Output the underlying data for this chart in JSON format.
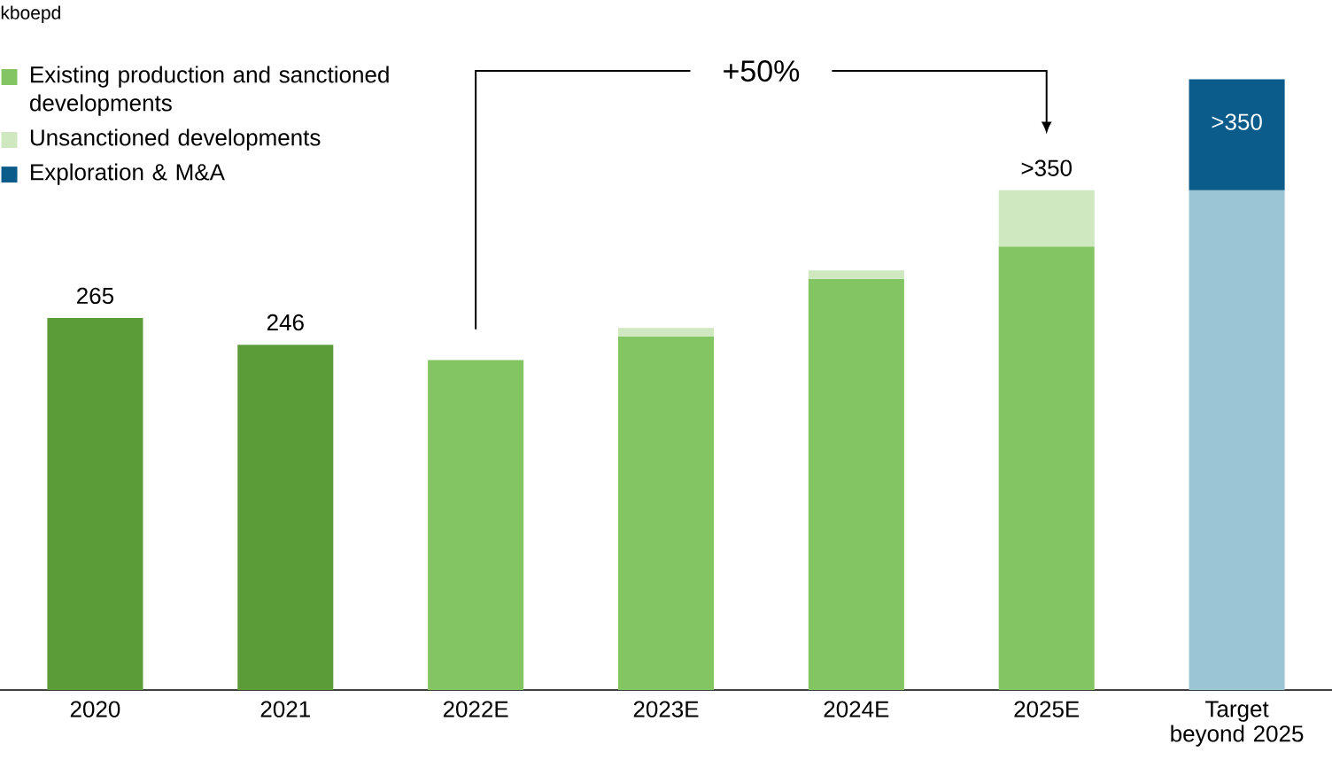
{
  "chart_data": {
    "type": "bar",
    "stacked": true,
    "ylabel": "kboepd",
    "categories": [
      "2020",
      "2021",
      "2022E",
      "2023E",
      "2024E",
      "2025E",
      "Target beyond 2025"
    ],
    "tick_labels": "x",
    "legend": "top left",
    "annotations": [
      "+50%"
    ],
    "series": [
      {
        "name": "Existing production and sanctioned developments",
        "color": "#84c563",
        "colors": [
          "#5b9c38",
          "#5b9c38",
          "#84c563",
          "#84c563",
          "#84c563",
          "#84c563",
          "#9bc4d4"
        ],
        "values": [
          265,
          246,
          235,
          252,
          293,
          316,
          356
        ],
        "value_labels": [
          "265",
          "246",
          null,
          null,
          null,
          null,
          null
        ]
      },
      {
        "name": "Unsanctioned developments",
        "color": "#cfe8c0",
        "values": [
          null,
          null,
          null,
          6,
          6,
          40,
          null
        ],
        "value_labels": [
          null,
          null,
          null,
          null,
          null,
          ">350",
          null
        ]
      },
      {
        "name": "Exploration & M&A",
        "color": "#0b5c8a",
        "values": [
          null,
          null,
          null,
          null,
          null,
          null,
          79
        ],
        "value_labels": [
          null,
          null,
          null,
          null,
          null,
          null,
          ">350"
        ]
      }
    ]
  }
}
